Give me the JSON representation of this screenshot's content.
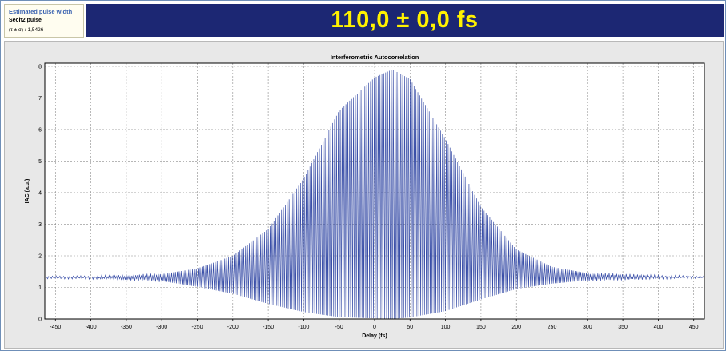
{
  "info": {
    "title": "Estimated pulse width",
    "pulse_type": "Sech2 pulse",
    "formula": "(τ ± σ) / 1,5426"
  },
  "result": {
    "text": "110,0 ± 0,0 fs"
  },
  "colors": {
    "banner_bg": "#1c2773",
    "banner_text": "#fff200",
    "trace": "#3a4fa8",
    "info_title": "#3a62b0"
  },
  "chart_data": {
    "type": "line",
    "title": "Interferometric Autocorrelation",
    "xlabel": "Delay (fs)",
    "ylabel": "IAC (a.u.)",
    "xlim": [
      -465,
      465
    ],
    "ylim": [
      0,
      8.1
    ],
    "grid": true,
    "xticks": [
      -450,
      -400,
      -350,
      -300,
      -250,
      -200,
      -150,
      -100,
      -50,
      0,
      50,
      100,
      150,
      200,
      250,
      300,
      350,
      400,
      450
    ],
    "yticks": [
      0,
      1,
      2,
      3,
      4,
      5,
      6,
      7,
      8
    ],
    "series": [
      {
        "description": "fringe trace",
        "envelope_x": [
          -465,
          -400,
          -300,
          -250,
          -200,
          -150,
          -100,
          -50,
          0,
          25,
          50,
          100,
          150,
          200,
          250,
          300,
          400,
          465
        ],
        "upper_envelope": [
          1.33,
          1.34,
          1.42,
          1.6,
          2.0,
          2.85,
          4.45,
          6.6,
          7.65,
          7.9,
          7.6,
          5.7,
          3.55,
          2.2,
          1.65,
          1.45,
          1.36,
          1.34
        ],
        "lower_envelope": [
          1.3,
          1.29,
          1.2,
          1.02,
          0.8,
          0.48,
          0.22,
          0.06,
          0.02,
          0.0,
          0.05,
          0.25,
          0.62,
          0.95,
          1.12,
          1.22,
          1.29,
          1.31
        ],
        "fringe_period_fs": 2.67
      }
    ]
  }
}
